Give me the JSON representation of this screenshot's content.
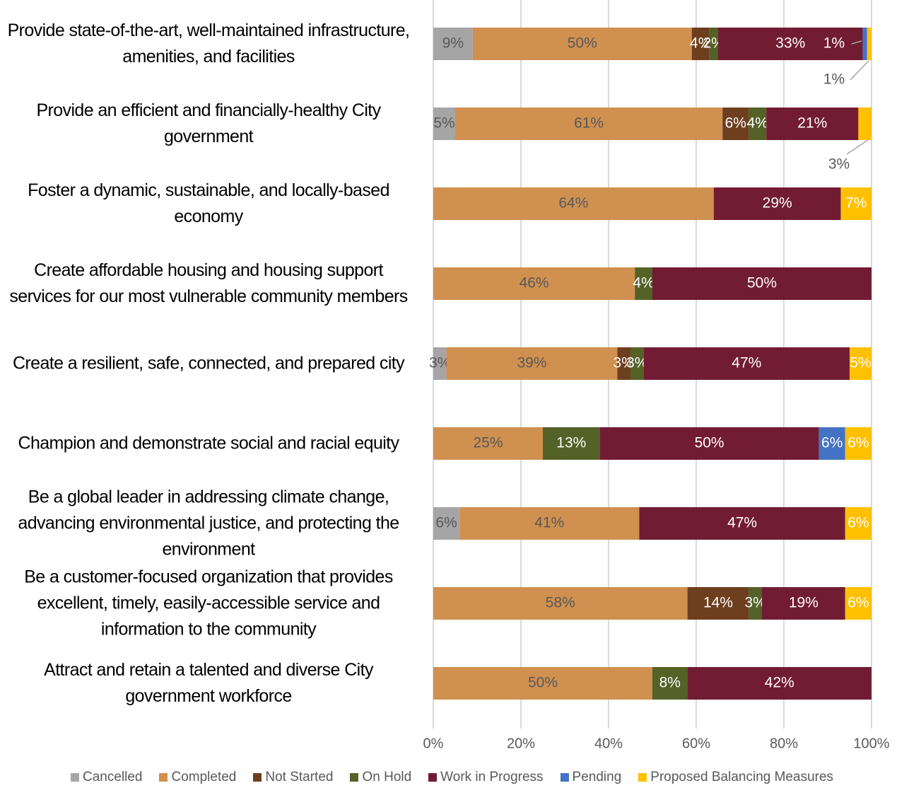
{
  "chart_data": {
    "type": "stacked_bar_horizontal",
    "categories": [
      "Provide state-of-the-art, well-maintained infrastructure, amenities, and facilities",
      "Provide an efficient and financially-healthy City government",
      "Foster a dynamic, sustainable, and locally-based economy",
      "Create affordable housing and housing support services for our most vulnerable community members",
      "Create a resilient, safe, connected, and prepared city",
      "Champion and demonstrate social and racial equity",
      "Be a global leader in addressing climate change, advancing environmental justice, and protecting the environment",
      "Be a customer-focused organization that provides excellent, timely, easily-accessible service and information to the community",
      "Attract and retain a talented and diverse City government workforce"
    ],
    "series": [
      {
        "name": "Cancelled",
        "color": "#a5a5a5",
        "label_color": "#595959",
        "values": [
          9,
          5,
          null,
          null,
          3,
          null,
          6,
          null,
          null
        ],
        "value_labels": [
          "9%",
          "5%",
          null,
          null,
          "3%",
          null,
          "6%",
          null,
          null
        ]
      },
      {
        "name": "Completed",
        "color": "#d09050",
        "label_color": "#595959",
        "values": [
          50,
          61,
          64,
          46,
          39,
          25,
          41,
          58,
          50
        ],
        "value_labels": [
          "50%",
          "61%",
          "64%",
          "46%",
          "39%",
          "25%",
          "41%",
          "58%",
          "50%"
        ]
      },
      {
        "name": "Not Started",
        "color": "#6e3f1f",
        "label_color": "#ffffff",
        "values": [
          4,
          6,
          null,
          null,
          3,
          null,
          null,
          14,
          null
        ],
        "value_labels": [
          "4%",
          "6%",
          null,
          null,
          "3%",
          null,
          null,
          "14%",
          null
        ]
      },
      {
        "name": "On Hold",
        "color": "#546127",
        "label_color": "#ffffff",
        "values": [
          2,
          4,
          null,
          4,
          3,
          13,
          null,
          3,
          8
        ],
        "value_labels": [
          "2%",
          "4%",
          null,
          "4%",
          "3%",
          "13%",
          null,
          "3%",
          "8%"
        ]
      },
      {
        "name": "Work in Progress",
        "color": "#721c33",
        "label_color": "#ffffff",
        "values": [
          33,
          21,
          29,
          50,
          47,
          50,
          47,
          19,
          42
        ],
        "value_labels": [
          "33%",
          "21%",
          "29%",
          "50%",
          "47%",
          "50%",
          "47%",
          "19%",
          "42%"
        ]
      },
      {
        "name": "Pending",
        "color": "#4472c4",
        "label_color": "#ffffff",
        "values": [
          1,
          null,
          null,
          null,
          null,
          6,
          null,
          null,
          null
        ],
        "value_labels": [
          "1%",
          null,
          null,
          null,
          null,
          "6%",
          null,
          null,
          null
        ]
      },
      {
        "name": "Proposed Balancing Measures",
        "color": "#ffc000",
        "label_color": "#ffffff",
        "values": [
          1,
          3,
          7,
          null,
          5,
          6,
          6,
          6,
          null
        ],
        "value_labels": [
          "1%",
          "3%",
          "7%",
          null,
          "5%",
          "6%",
          "6%",
          "6%",
          null
        ]
      }
    ],
    "xlim": [
      0,
      100
    ],
    "xticks": [
      {
        "value": 0,
        "label": "0%"
      },
      {
        "value": 20,
        "label": "20%"
      },
      {
        "value": 40,
        "label": "40%"
      },
      {
        "value": 60,
        "label": "60%"
      },
      {
        "value": 80,
        "label": "80%"
      },
      {
        "value": 100,
        "label": "100%"
      }
    ],
    "grid": true,
    "legend": "bottom"
  }
}
